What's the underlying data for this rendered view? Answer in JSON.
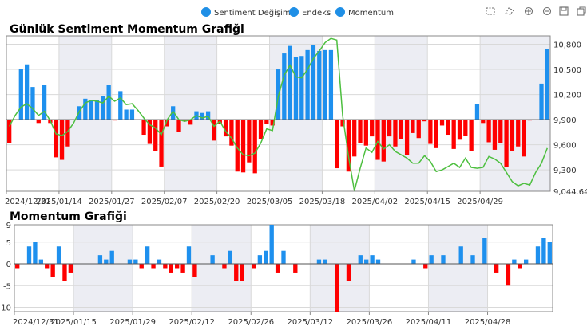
{
  "legend": {
    "items": [
      {
        "label": "Sentiment Değişimi",
        "color": "#1f8fe6"
      },
      {
        "label": "Endeks",
        "color": "#1f8fe6"
      },
      {
        "label": "Momentum",
        "color": "#1f8fe6"
      }
    ]
  },
  "toolbar": {
    "icons": [
      "select-rect-icon",
      "select-lasso-icon",
      "zoom-in-icon",
      "zoom-out-icon",
      "save-icon",
      "reset-icon"
    ]
  },
  "colors": {
    "positive": "#1e90ee",
    "negative": "#ff0000",
    "line": "#4dbf3f",
    "band": "#ecedf3",
    "grid": "#d9d9d9",
    "axis": "#888888",
    "text": "#333333"
  },
  "chart_data": [
    {
      "type": "bar+line",
      "title": "Günlük Sentiment Momentum Grafiği",
      "x_tick_labels": [
        "2024/12/31",
        "2025/01/14",
        "2025/01/27",
        "2025/02/07",
        "2025/02/20",
        "2025/03/05",
        "2025/03/18",
        "2025/04/02",
        "2025/04/15",
        "2025/04/29"
      ],
      "x_tick_index": [
        0,
        9,
        18,
        27,
        36,
        45,
        54,
        63,
        72,
        81
      ],
      "bar_baseline": 9900,
      "ylim": [
        9044.64,
        10900
      ],
      "y_ticks": [
        9044.64,
        9300,
        9600,
        9900,
        10200,
        10500,
        10800
      ],
      "y_tick_labels": [
        "9,044.64",
        "9,300",
        "9,600",
        "9,900",
        "10,200",
        "10,500",
        "10,800"
      ],
      "series": [
        {
          "name": "Sentiment Değişimi",
          "kind": "bar",
          "values": [
            9620,
            9900,
            10500,
            10560,
            10290,
            9860,
            10310,
            9860,
            9450,
            9420,
            9580,
            9900,
            10060,
            10150,
            10130,
            10130,
            10180,
            10310,
            9890,
            10240,
            10020,
            10020,
            9900,
            9720,
            9610,
            9530,
            9340,
            9820,
            10060,
            9750,
            9880,
            9840,
            10000,
            9980,
            10000,
            9650,
            9850,
            9700,
            9590,
            9280,
            9270,
            9390,
            9260,
            9670,
            9850,
            9830,
            10500,
            10690,
            10780,
            10650,
            10660,
            10730,
            10790,
            10720,
            10730,
            10730,
            9320,
            9820,
            9280,
            9460,
            9620,
            9590,
            9700,
            9420,
            9400,
            9700,
            9580,
            9670,
            9480,
            9740,
            9680,
            9880,
            9610,
            9560,
            9830,
            9720,
            9550,
            9660,
            9710,
            9530,
            10090,
            9860,
            9630,
            9540,
            9620,
            9330,
            9530,
            9580,
            9460,
            9890,
            9900,
            10330,
            10740
          ]
        },
        {
          "name": "Endeks",
          "kind": "line",
          "values": [
            9820,
            9950,
            10050,
            10090,
            10030,
            9950,
            10000,
            9890,
            9730,
            9710,
            9760,
            9860,
            10000,
            10100,
            10130,
            10120,
            10100,
            10180,
            10120,
            10160,
            10080,
            10090,
            10010,
            9920,
            9840,
            9800,
            9720,
            9900,
            10000,
            9900,
            9880,
            9900,
            9950,
            9920,
            9940,
            9820,
            9880,
            9760,
            9680,
            9560,
            9480,
            9470,
            9500,
            9620,
            9790,
            9770,
            10180,
            10430,
            10550,
            10410,
            10400,
            10500,
            10630,
            10720,
            10820,
            10870,
            10850,
            9950,
            9460,
            9050,
            9320,
            9560,
            9510,
            9640,
            9550,
            9600,
            9520,
            9480,
            9440,
            9380,
            9380,
            9470,
            9400,
            9280,
            9300,
            9340,
            9380,
            9330,
            9440,
            9330,
            9320,
            9330,
            9460,
            9430,
            9380,
            9270,
            9160,
            9110,
            9140,
            9120,
            9270,
            9380,
            9560
          ]
        }
      ]
    },
    {
      "type": "bar",
      "title": "Momentum Grafiği",
      "x_tick_labels": [
        "2024/12/31",
        "2025/01/15",
        "2025/01/29",
        "2025/02/12",
        "2025/02/26",
        "2025/03/12",
        "2025/03/26",
        "2025/04/11",
        "2025/04/28"
      ],
      "x_tick_index": [
        0,
        10,
        20,
        30,
        40,
        50,
        60,
        70,
        80
      ],
      "ylim": [
        -11,
        9
      ],
      "y_ticks": [
        -10,
        -5,
        0,
        5,
        9
      ],
      "y_tick_labels": [
        "-10",
        "-5",
        "0",
        "5",
        "9"
      ],
      "series": [
        {
          "name": "Momentum",
          "kind": "bar",
          "values": [
            -1,
            0,
            4,
            5,
            1,
            -1,
            -3,
            4,
            -4,
            -2,
            0,
            0,
            0,
            0,
            2,
            1,
            3,
            0,
            0,
            1,
            1,
            -1,
            4,
            -1,
            1,
            -1,
            -2,
            -1,
            -2,
            4,
            -3,
            0,
            0,
            2,
            0,
            -1,
            3,
            -4,
            -4,
            0,
            -1,
            2,
            3,
            9,
            -2,
            3,
            0,
            -2,
            0,
            0,
            0,
            1,
            1,
            0,
            -11,
            0,
            -4,
            0,
            2,
            1,
            2,
            1,
            0,
            0,
            0,
            0,
            0,
            1,
            0,
            -1,
            2,
            0,
            2,
            0,
            0,
            4,
            0,
            2,
            0,
            6,
            0,
            -2,
            0,
            -5,
            1,
            -1,
            1,
            0,
            4,
            6,
            5
          ]
        }
      ]
    }
  ]
}
